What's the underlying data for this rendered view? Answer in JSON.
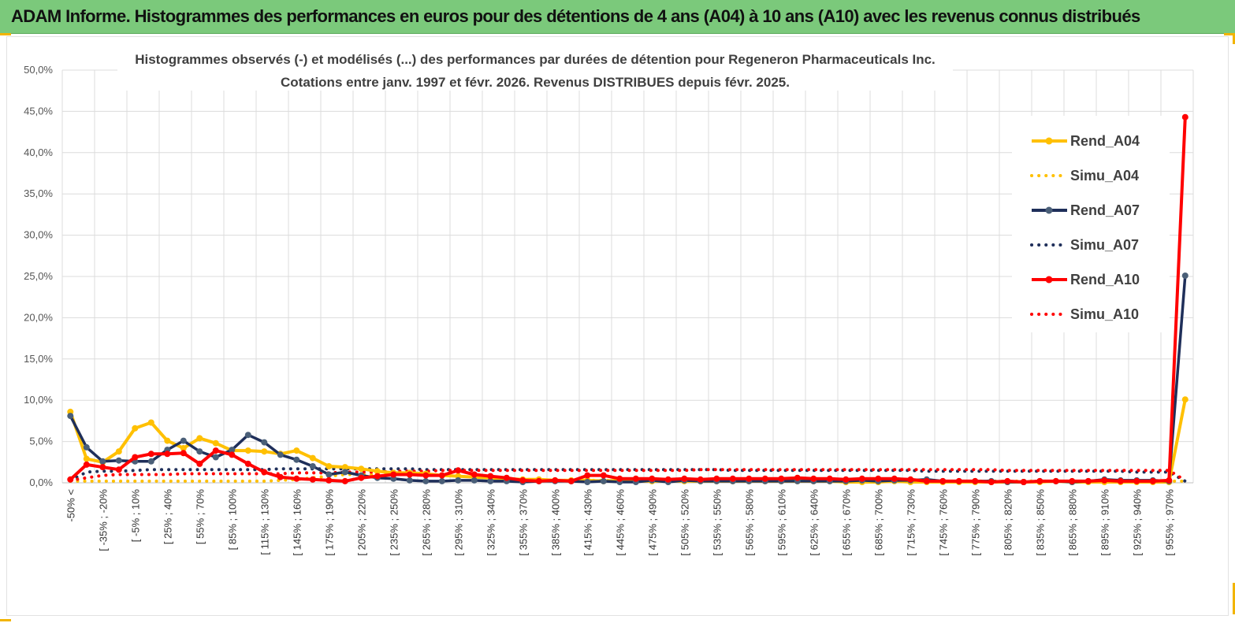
{
  "header": {
    "title": "ADAM Informe. Histogrammes des performances en euros pour des détentions de 4 ans (A04) à 10 ans (A10) avec les revenus connus distribués"
  },
  "colors": {
    "banner": "#7bc97b",
    "accent_corner": "#f2b400",
    "a04": "#ffc000",
    "a07": "#1f2f5a",
    "a10": "#ff0000"
  },
  "chart_data": {
    "type": "line",
    "title": "Histogrammes observés (-) et modélisés (...) des performances par durées de détention pour Regeneron Pharmaceuticals Inc.",
    "subtitle": "Cotations entre janv. 1997 et févr.  2026. Revenus DISTRIBUES depuis févr. 2025.",
    "xlabel": "",
    "ylabel": "",
    "ylim": [
      0,
      50
    ],
    "y_ticks": [
      "0,0%",
      "5,0%",
      "10,0%",
      "15,0%",
      "20,0%",
      "25,0%",
      "30,0%",
      "35,0%",
      "40,0%",
      "45,0%",
      "50,0%"
    ],
    "grid": true,
    "legend_position": "right",
    "x_tick_labels": [
      "-50% <",
      "[ -35% ; -20%",
      "[ -5% ; 10%",
      "[ 25% ; 40%",
      "[ 55% ; 70%",
      "[ 85% ; 100%",
      "[ 115% ; 130%",
      "[ 145% ; 160%",
      "[ 175% ; 190%",
      "[ 205% ; 220%",
      "[ 235% ; 250%",
      "[ 265% ; 280%",
      "[ 295% ; 310%",
      "[ 325% ; 340%",
      "[ 355% ; 370%",
      "[ 385% ; 400%",
      "[ 415% ; 430%",
      "[ 445% ; 460%",
      "[ 475% ; 490%",
      "[ 505% ; 520%",
      "[ 535% ; 550%",
      "[ 565% ; 580%",
      "[ 595% ; 610%",
      "[ 625% ; 640%",
      "[ 655% ; 670%",
      "[ 685% ; 700%",
      "[ 715% ; 730%",
      "[ 745% ; 760%",
      "[ 775% ; 790%",
      "[ 805% ; 820%",
      "[ 835% ; 850%",
      "[ 865% ; 880%",
      "[ 895% ; 910%",
      "[ 925% ; 940%",
      "[ 955% ; 970%"
    ],
    "n_categories": 70,
    "series": [
      {
        "name": "Rend_A04",
        "style": "solid",
        "color": "#ffc000",
        "values": [
          8.6,
          2.9,
          2.5,
          3.8,
          6.6,
          7.3,
          5.1,
          4.2,
          5.4,
          4.8,
          3.9,
          3.9,
          3.8,
          3.5,
          3.9,
          3.0,
          2.0,
          1.9,
          1.7,
          1.4,
          1.2,
          1.2,
          1.1,
          0.9,
          0.8,
          0.7,
          0.6,
          0.5,
          0.4,
          0.4,
          0.3,
          0.3,
          0.3,
          0.2,
          0.3,
          0.2,
          0.2,
          0.2,
          0.2,
          0.2,
          0.2,
          0.2,
          0.2,
          0.2,
          0.2,
          0.2,
          0.2,
          0.2,
          0.1,
          0.1,
          0.1,
          0.2,
          0.1,
          0.1,
          0.1,
          0.1,
          0.1,
          0.1,
          0.1,
          0.1,
          0.1,
          0.2,
          0.1,
          0.1,
          0.1,
          0.1,
          0.1,
          0.1,
          0.1,
          10.1
        ]
      },
      {
        "name": "Simu_A04",
        "style": "dotted",
        "color": "#ffc000",
        "values": [
          0.2,
          0.2,
          0.2,
          0.2,
          0.2,
          0.2,
          0.2,
          0.2,
          0.2,
          0.2,
          0.2,
          0.2,
          0.2,
          0.3,
          0.4,
          0.6,
          0.8,
          1.0,
          1.0,
          1.0,
          1.0,
          1.0,
          1.0,
          0.9,
          0.8,
          0.7,
          0.6,
          0.5,
          0.4,
          0.4,
          0.3,
          0.3,
          0.3,
          0.3,
          0.2,
          0.2,
          0.2,
          0.2,
          0.2,
          0.2,
          0.2,
          0.2,
          0.2,
          0.2,
          0.2,
          0.2,
          0.2,
          0.2,
          0.2,
          0.2,
          0.2,
          0.2,
          0.2,
          0.2,
          0.2,
          0.2,
          0.2,
          0.2,
          0.2,
          0.2,
          0.2,
          0.2,
          0.2,
          0.2,
          0.2,
          0.2,
          0.2,
          0.2,
          0.2,
          0.2
        ]
      },
      {
        "name": "Rend_A07",
        "style": "solid",
        "color": "#1f2f5a",
        "values": [
          8.1,
          4.3,
          2.6,
          2.7,
          2.6,
          2.6,
          4.0,
          5.1,
          3.8,
          3.1,
          4.0,
          5.8,
          4.9,
          3.4,
          2.8,
          2.0,
          1.0,
          1.3,
          0.9,
          0.6,
          0.5,
          0.3,
          0.2,
          0.2,
          0.3,
          0.3,
          0.2,
          0.2,
          0.1,
          0.2,
          0.2,
          0.2,
          0.1,
          0.2,
          0.1,
          0.1,
          0.3,
          0.1,
          0.3,
          0.2,
          0.2,
          0.2,
          0.2,
          0.2,
          0.2,
          0.2,
          0.2,
          0.2,
          0.2,
          0.3,
          0.2,
          0.3,
          0.3,
          0.4,
          0.2,
          0.2,
          0.2,
          0.2,
          0.1,
          0.1,
          0.2,
          0.2,
          0.1,
          0.2,
          0.4,
          0.3,
          0.3,
          0.3,
          0.2,
          25.1
        ]
      },
      {
        "name": "Simu_A07",
        "style": "dotted",
        "color": "#1f2f5a",
        "values": [
          0.3,
          1.3,
          1.4,
          1.4,
          1.5,
          1.6,
          1.6,
          1.6,
          1.6,
          1.6,
          1.6,
          1.6,
          1.6,
          1.7,
          1.7,
          1.7,
          1.7,
          1.7,
          1.7,
          1.7,
          1.7,
          1.7,
          1.6,
          1.6,
          1.6,
          1.6,
          1.6,
          1.6,
          1.6,
          1.6,
          1.6,
          1.6,
          1.6,
          1.6,
          1.6,
          1.6,
          1.6,
          1.6,
          1.6,
          1.6,
          1.6,
          1.5,
          1.5,
          1.5,
          1.5,
          1.5,
          1.5,
          1.5,
          1.5,
          1.5,
          1.5,
          1.5,
          1.5,
          1.4,
          1.4,
          1.4,
          1.4,
          1.4,
          1.4,
          1.4,
          1.4,
          1.4,
          1.4,
          1.4,
          1.4,
          1.4,
          1.3,
          1.3,
          1.3,
          0.2
        ]
      },
      {
        "name": "Rend_A10",
        "style": "solid",
        "color": "#ff0000",
        "values": [
          0.4,
          2.2,
          1.9,
          1.6,
          3.1,
          3.5,
          3.5,
          3.6,
          2.3,
          3.9,
          3.4,
          2.3,
          1.3,
          0.7,
          0.5,
          0.4,
          0.3,
          0.2,
          0.6,
          0.8,
          1.0,
          1.0,
          0.9,
          0.9,
          1.5,
          1.0,
          0.8,
          0.6,
          0.3,
          0.2,
          0.3,
          0.2,
          0.9,
          0.9,
          0.5,
          0.5,
          0.5,
          0.4,
          0.5,
          0.4,
          0.5,
          0.5,
          0.5,
          0.5,
          0.5,
          0.6,
          0.5,
          0.5,
          0.4,
          0.5,
          0.5,
          0.5,
          0.4,
          0.2,
          0.2,
          0.2,
          0.2,
          0.1,
          0.2,
          0.1,
          0.2,
          0.2,
          0.2,
          0.2,
          0.3,
          0.2,
          0.2,
          0.2,
          0.3,
          44.3
        ]
      },
      {
        "name": "Simu_A10",
        "style": "dotted",
        "color": "#ff0000",
        "values": [
          0.3,
          0.6,
          0.9,
          1.0,
          1.0,
          1.0,
          1.0,
          1.1,
          1.1,
          1.1,
          1.1,
          1.1,
          1.1,
          1.1,
          1.2,
          1.2,
          1.2,
          1.3,
          1.3,
          1.3,
          1.4,
          1.4,
          1.4,
          1.5,
          1.5,
          1.5,
          1.5,
          1.5,
          1.5,
          1.5,
          1.5,
          1.5,
          1.5,
          1.5,
          1.5,
          1.5,
          1.5,
          1.5,
          1.5,
          1.6,
          1.6,
          1.6,
          1.6,
          1.6,
          1.6,
          1.6,
          1.6,
          1.6,
          1.6,
          1.6,
          1.6,
          1.6,
          1.6,
          1.6,
          1.6,
          1.6,
          1.6,
          1.6,
          1.5,
          1.5,
          1.5,
          1.5,
          1.5,
          1.5,
          1.5,
          1.5,
          1.5,
          1.5,
          1.5,
          0.3
        ]
      }
    ]
  }
}
